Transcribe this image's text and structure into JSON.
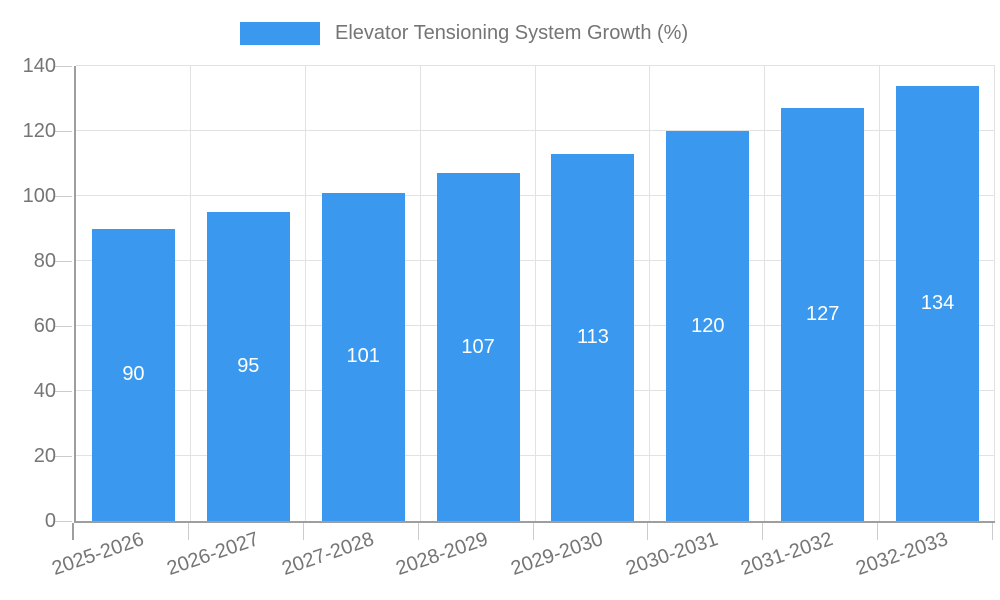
{
  "chart_data": {
    "type": "bar",
    "title": "Elevator Tensioning System Growth (%)",
    "legend": [
      "Elevator Tensioning System Growth (%)"
    ],
    "legend_position": "top",
    "categories": [
      "2025-2026",
      "2026-2027",
      "2027-2028",
      "2028-2029",
      "2029-2030",
      "2030-2031",
      "2031-2032",
      "2032-2033"
    ],
    "values": [
      90,
      95,
      101,
      107,
      113,
      120,
      127,
      134
    ],
    "bar_value_labels": [
      "90",
      "95",
      "101",
      "107",
      "113",
      "120",
      "127",
      "134"
    ],
    "xlabel": "",
    "ylabel": "",
    "ylim": [
      0,
      140
    ],
    "yticks": [
      0,
      20,
      40,
      60,
      80,
      100,
      120,
      140
    ],
    "grid": true,
    "x_label_rotation_deg": -19,
    "colors": {
      "bar": "#3A99EE",
      "bar_label": "#FFFFFF",
      "axis": "#9E9E9E",
      "gridline": "#E2E2E2",
      "tick": "#CCCCCC",
      "text": "#757575",
      "background": "#FFFFFF"
    }
  }
}
